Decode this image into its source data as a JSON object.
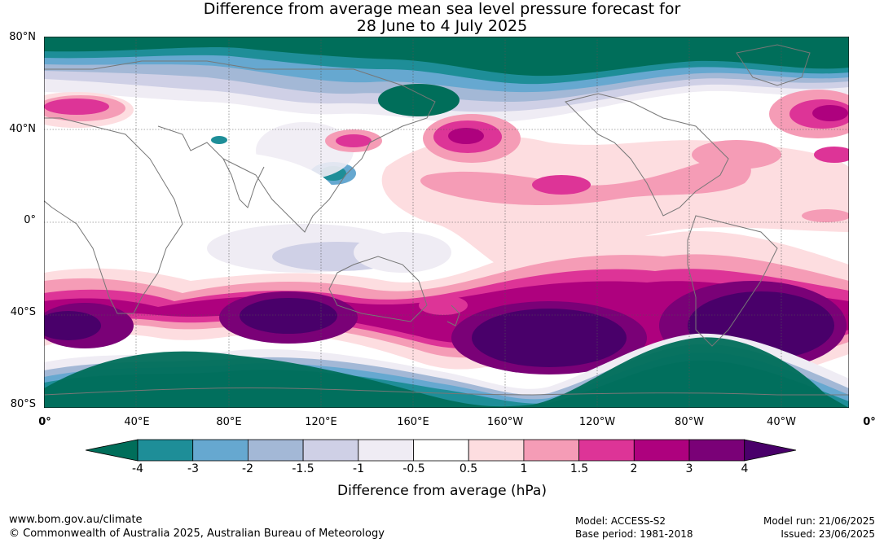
{
  "title_line1": "Difference from average mean sea level pressure forecast for",
  "title_line2": "28 June to 4 July 2025",
  "lat_labels": [
    "80°N",
    "40°N",
    "0°",
    "40°S",
    "80°S"
  ],
  "lon_labels": [
    "0°",
    "40°E",
    "80°E",
    "120°E",
    "160°E",
    "160°W",
    "120°W",
    "80°W",
    "40°W",
    "0°"
  ],
  "colorbar": {
    "label": "Difference from average (hPa)",
    "ticks": [
      "-4",
      "-3",
      "-2",
      "-1.5",
      "-1",
      "-0.5",
      "0.5",
      "1",
      "1.5",
      "2",
      "3",
      "4"
    ],
    "colors": {
      "below_-4": "#006e5a",
      "-4_-3": "#1e8e98",
      "-3_-2": "#66a8d0",
      "-2_-1.5": "#a3b8d6",
      "-1.5_-1": "#cfd0e6",
      "-1_-0.5": "#efecf4",
      "-0.5_0.5": "#ffffff",
      "0.5_1": "#fddde0",
      "1_1.5": "#f59cb6",
      "1.5_2": "#dd3497",
      "2_3": "#ae017e",
      "3_4": "#7a0177",
      "above_4": "#49006a"
    }
  },
  "footer": {
    "website": "www.bom.gov.au/climate",
    "copyright": "© Commonwealth of Australia 2025, Australian Bureau of Meteorology",
    "model": "Model: ACCESS-S2",
    "base_period": "Base period: 1981-2018",
    "model_run": "Model run: 21/06/2025",
    "issued": "Issued: 23/06/2025"
  }
}
